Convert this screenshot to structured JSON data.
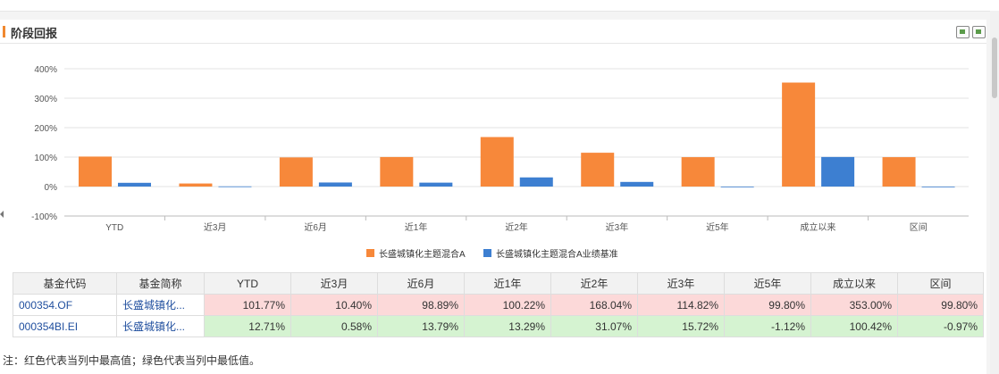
{
  "section": {
    "title": "阶段回报"
  },
  "toolbar": {
    "icons": [
      "image-export-icon",
      "excel-export-icon"
    ]
  },
  "chart_data": {
    "type": "bar",
    "categories": [
      "YTD",
      "近3月",
      "近6月",
      "近1年",
      "近2年",
      "近3年",
      "近5年",
      "成立以来",
      "区间"
    ],
    "series": [
      {
        "name": "长盛城镇化主题混合A",
        "color": "#f7883a",
        "values": [
          101.77,
          10.4,
          98.89,
          100.22,
          168.04,
          114.82,
          99.8,
          353.0,
          99.8
        ]
      },
      {
        "name": "长盛城镇化主题混合A业绩基准",
        "color": "#3d7fd1",
        "values": [
          12.71,
          0.58,
          13.79,
          13.29,
          31.07,
          15.72,
          -1.12,
          100.42,
          -0.97
        ]
      }
    ],
    "ylim": [
      -100,
      400
    ],
    "yticks": [
      -100,
      0,
      100,
      200,
      300,
      400
    ],
    "ytick_labels": [
      "-100%",
      "0%",
      "100%",
      "200%",
      "300%",
      "400%"
    ],
    "grid": true,
    "legend": "bottom-center"
  },
  "table": {
    "headers": [
      "基金代码",
      "基金简称",
      "YTD",
      "近3月",
      "近6月",
      "近1年",
      "近2年",
      "近3年",
      "近5年",
      "成立以来",
      "区间"
    ],
    "rows": [
      {
        "code": "000354.OF",
        "name": "长盛城镇化...",
        "values": [
          "101.77%",
          "10.40%",
          "98.89%",
          "100.22%",
          "168.04%",
          "114.82%",
          "99.80%",
          "353.00%",
          "99.80%"
        ]
      },
      {
        "code": "000354BI.EI",
        "name": "长盛城镇化...",
        "values": [
          "12.71%",
          "0.58%",
          "13.79%",
          "13.29%",
          "31.07%",
          "15.72%",
          "-1.12%",
          "100.42%",
          "-0.97%"
        ]
      }
    ]
  },
  "note": "注：红色代表当列中最高值；绿色代表当列中最低值。"
}
